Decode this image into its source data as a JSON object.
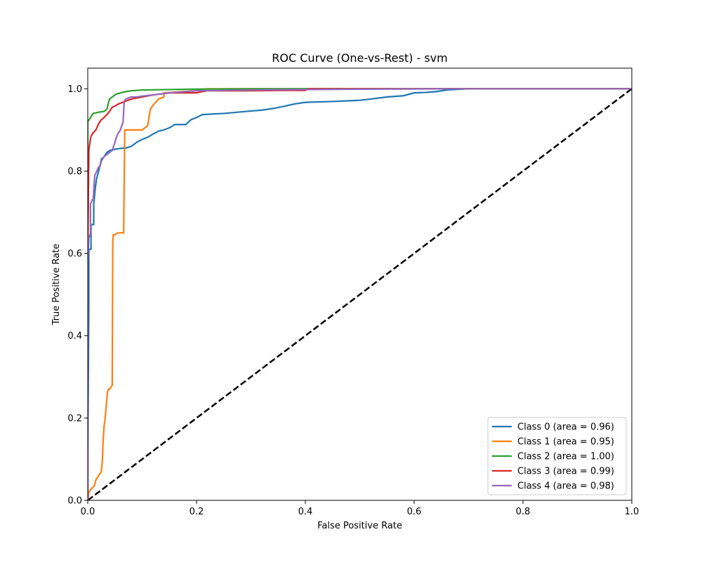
{
  "chart_data": {
    "type": "line",
    "title": "ROC Curve (One-vs-Rest) - svm",
    "xlabel": "False Positive Rate",
    "ylabel": "True Positive Rate",
    "xlim": [
      0.0,
      1.0
    ],
    "ylim": [
      0.0,
      1.05
    ],
    "xticks": [
      "0.0",
      "0.2",
      "0.4",
      "0.6",
      "0.8",
      "1.0"
    ],
    "yticks": [
      "0.0",
      "0.2",
      "0.4",
      "0.6",
      "0.8",
      "1.0"
    ],
    "grid": false,
    "legend_position": "lower-right",
    "diagonal": {
      "x": [
        0,
        1
      ],
      "y": [
        0,
        1
      ],
      "color": "#000000",
      "style": "dashed"
    },
    "series": [
      {
        "name": "Class 0 (area = 0.96)",
        "color": "#1f77b4",
        "x": [
          0.0,
          0.0,
          0.002,
          0.002,
          0.006,
          0.006,
          0.011,
          0.011,
          0.014,
          0.016,
          0.02,
          0.025,
          0.03,
          0.035,
          0.04,
          0.05,
          0.06,
          0.07,
          0.08,
          0.09,
          0.1,
          0.11,
          0.12,
          0.13,
          0.14,
          0.15,
          0.16,
          0.17,
          0.18,
          0.19,
          0.2,
          0.21,
          0.22,
          0.25,
          0.3,
          0.32,
          0.34,
          0.36,
          0.38,
          0.4,
          0.45,
          0.5,
          0.52,
          0.55,
          0.58,
          0.6,
          0.62,
          0.64,
          0.66,
          0.7,
          1.0
        ],
        "y": [
          0.0,
          0.1,
          0.48,
          0.61,
          0.61,
          0.67,
          0.67,
          0.72,
          0.76,
          0.78,
          0.8,
          0.825,
          0.835,
          0.845,
          0.85,
          0.853,
          0.855,
          0.856,
          0.86,
          0.87,
          0.877,
          0.882,
          0.89,
          0.897,
          0.9,
          0.905,
          0.913,
          0.913,
          0.913,
          0.925,
          0.93,
          0.937,
          0.938,
          0.94,
          0.946,
          0.948,
          0.952,
          0.957,
          0.963,
          0.967,
          0.969,
          0.972,
          0.975,
          0.98,
          0.983,
          0.99,
          0.991,
          0.993,
          0.997,
          1.0,
          1.0
        ]
      },
      {
        "name": "Class 1 (area = 0.95)",
        "color": "#ff7f0e",
        "x": [
          0.0,
          0.002,
          0.005,
          0.008,
          0.012,
          0.015,
          0.02,
          0.025,
          0.027,
          0.028,
          0.03,
          0.032,
          0.034,
          0.036,
          0.038,
          0.04,
          0.045,
          0.046,
          0.047,
          0.05,
          0.055,
          0.06,
          0.066,
          0.067,
          0.068,
          0.07,
          0.1,
          0.105,
          0.11,
          0.115,
          0.12,
          0.13,
          0.14,
          0.14,
          0.2,
          0.21,
          0.22,
          0.3,
          0.4,
          0.6,
          0.8,
          1.0
        ],
        "y": [
          0.0,
          0.02,
          0.025,
          0.03,
          0.035,
          0.05,
          0.06,
          0.07,
          0.1,
          0.14,
          0.18,
          0.2,
          0.23,
          0.26,
          0.27,
          0.27,
          0.28,
          0.63,
          0.645,
          0.645,
          0.65,
          0.65,
          0.65,
          0.78,
          0.9,
          0.9,
          0.9,
          0.905,
          0.91,
          0.95,
          0.96,
          0.975,
          0.98,
          0.99,
          0.995,
          0.998,
          1.0,
          1.0,
          1.0,
          1.0,
          1.0,
          1.0
        ]
      },
      {
        "name": "Class 2 (area = 1.00)",
        "color": "#2ca02c",
        "x": [
          0.0,
          0.0,
          0.005,
          0.01,
          0.02,
          0.03,
          0.035,
          0.037,
          0.04,
          0.045,
          0.05,
          0.055,
          0.06,
          0.07,
          0.08,
          0.1,
          0.15,
          0.2,
          0.3,
          0.5,
          0.8,
          1.0
        ],
        "y": [
          0.0,
          0.92,
          0.93,
          0.94,
          0.943,
          0.945,
          0.95,
          0.96,
          0.975,
          0.98,
          0.985,
          0.988,
          0.99,
          0.993,
          0.995,
          0.997,
          0.998,
          0.999,
          1.0,
          1.0,
          1.0,
          1.0
        ]
      },
      {
        "name": "Class 3 (area = 0.99)",
        "color": "#d62728",
        "x": [
          0.0,
          0.0,
          0.002,
          0.004,
          0.006,
          0.01,
          0.015,
          0.02,
          0.025,
          0.03,
          0.035,
          0.04,
          0.045,
          0.05,
          0.055,
          0.06,
          0.07,
          0.08,
          0.1,
          0.12,
          0.15,
          0.2,
          0.21,
          0.22,
          0.3,
          0.36,
          0.4,
          0.405,
          1.0
        ],
        "y": [
          0.0,
          0.6,
          0.85,
          0.87,
          0.885,
          0.893,
          0.9,
          0.915,
          0.925,
          0.93,
          0.937,
          0.945,
          0.955,
          0.958,
          0.962,
          0.965,
          0.97,
          0.975,
          0.98,
          0.985,
          0.99,
          0.99,
          0.993,
          0.995,
          0.995,
          0.996,
          0.996,
          1.0,
          1.0
        ]
      },
      {
        "name": "Class 4 (area = 0.98)",
        "color": "#9467bd",
        "x": [
          0.0,
          0.0,
          0.002,
          0.003,
          0.005,
          0.005,
          0.007,
          0.008,
          0.01,
          0.012,
          0.013,
          0.015,
          0.02,
          0.022,
          0.025,
          0.028,
          0.03,
          0.035,
          0.04,
          0.045,
          0.05,
          0.052,
          0.055,
          0.06,
          0.065,
          0.067,
          0.07,
          0.08,
          0.09,
          0.1,
          0.12,
          0.15,
          0.2,
          0.3,
          0.5,
          0.7,
          1.0
        ],
        "y": [
          0.0,
          0.58,
          0.64,
          0.64,
          0.65,
          0.72,
          0.725,
          0.73,
          0.73,
          0.775,
          0.79,
          0.795,
          0.81,
          0.81,
          0.83,
          0.832,
          0.835,
          0.84,
          0.845,
          0.85,
          0.87,
          0.88,
          0.89,
          0.9,
          0.92,
          0.97,
          0.975,
          0.98,
          0.98,
          0.982,
          0.985,
          0.99,
          0.995,
          0.997,
          0.999,
          1.0,
          1.0
        ]
      }
    ]
  }
}
